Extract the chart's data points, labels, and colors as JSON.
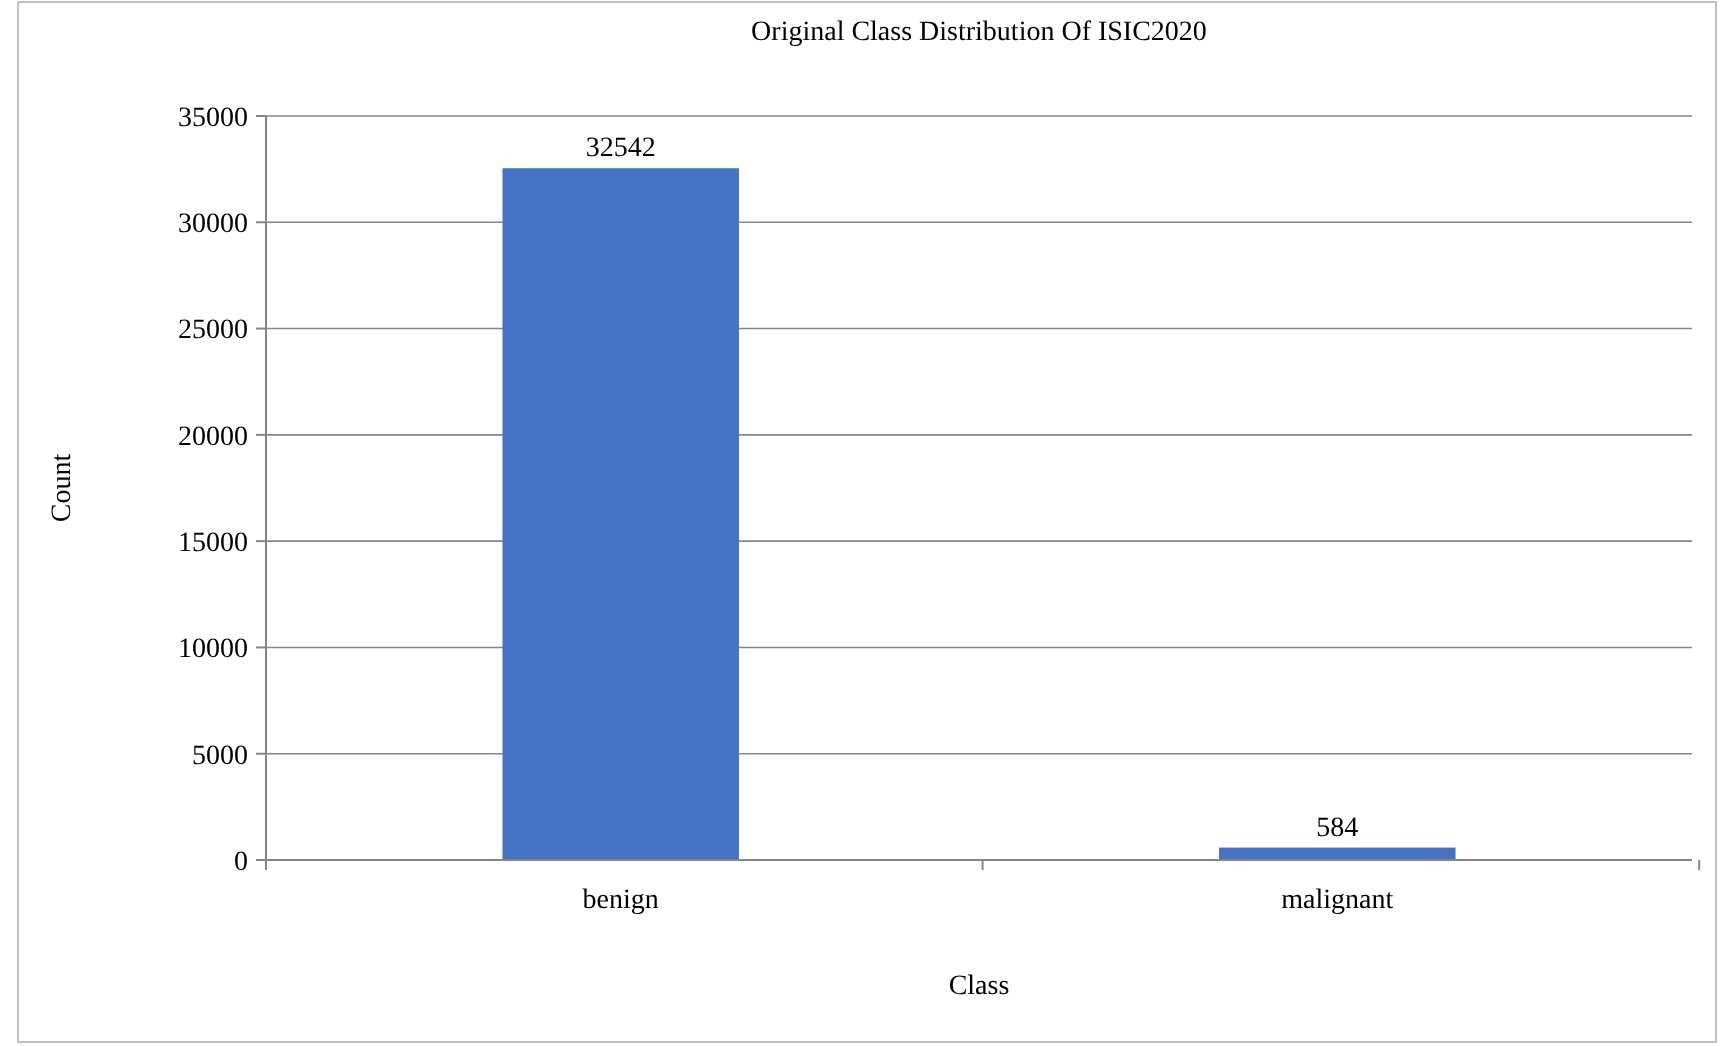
{
  "chart_data": {
    "type": "bar",
    "title": "Original Class Distribution Of ISIC2020",
    "xlabel": "Class",
    "ylabel": "Count",
    "categories": [
      "benign",
      "malignant"
    ],
    "values": [
      32542,
      584
    ],
    "color": "#4472c4",
    "data_labels": true,
    "ylim": [
      0,
      35000
    ],
    "yticks": [
      0,
      5000,
      10000,
      15000,
      20000,
      25000,
      30000,
      35000
    ],
    "grid": "y"
  }
}
